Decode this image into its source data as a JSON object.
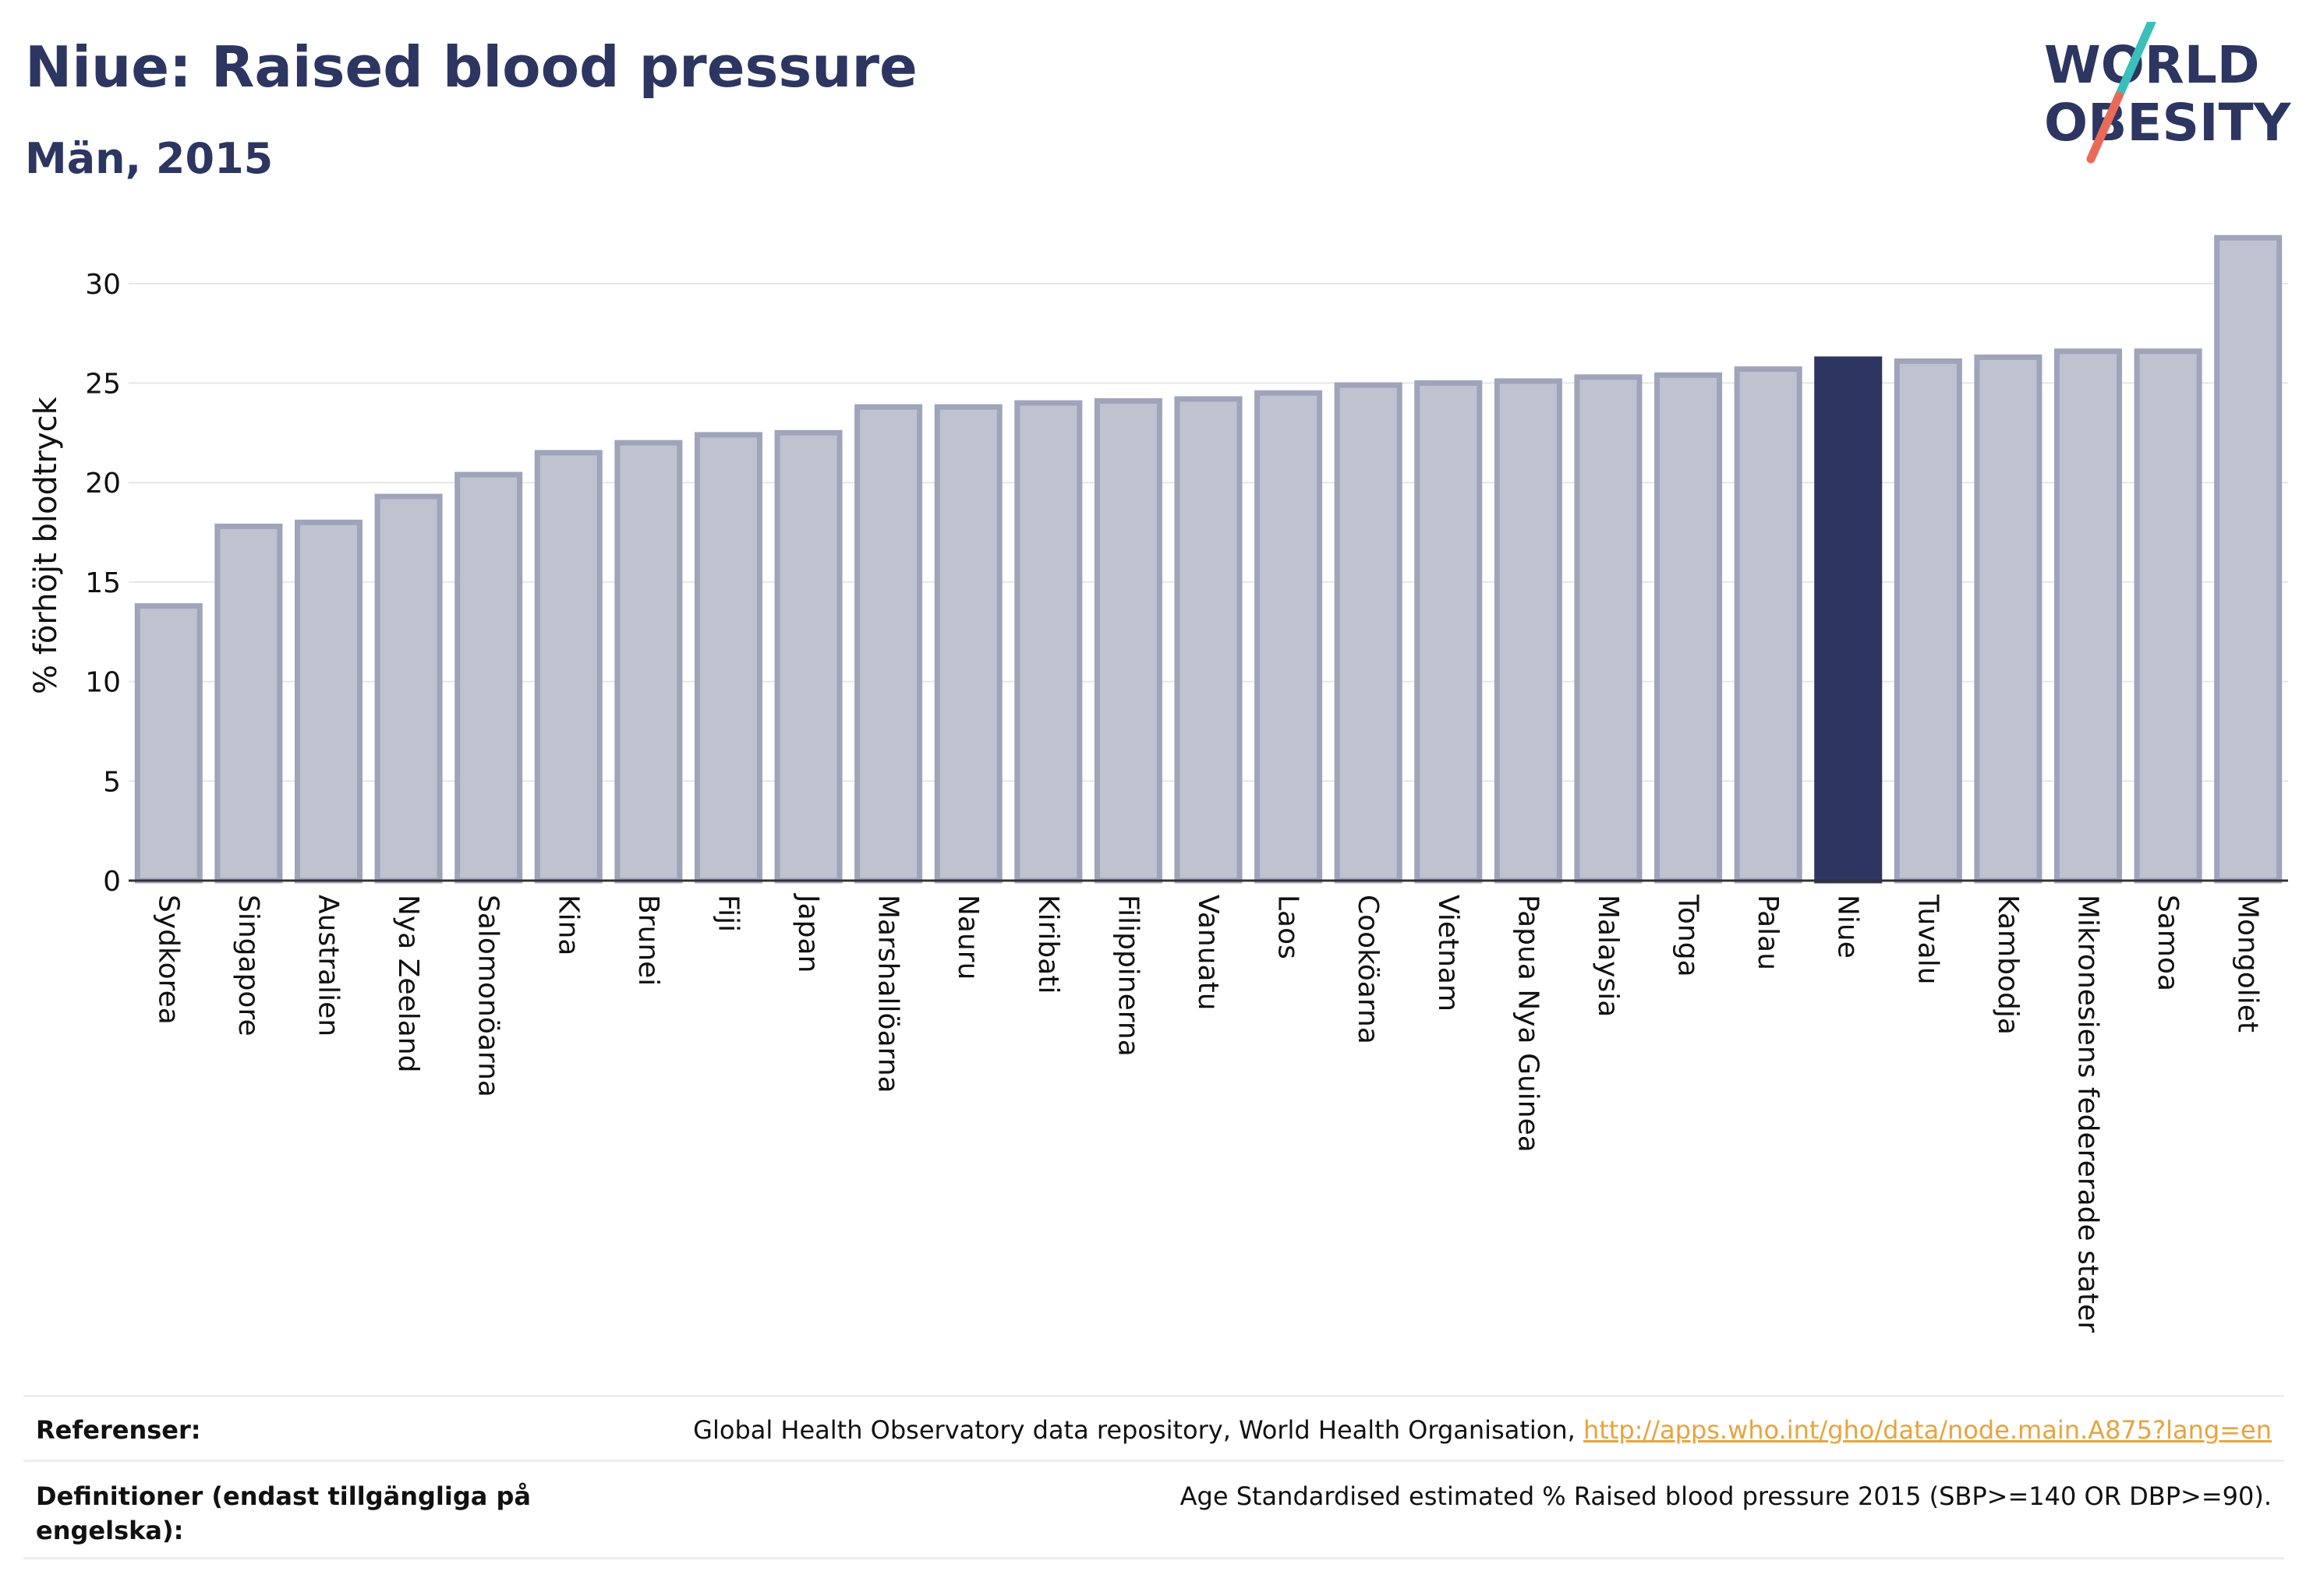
{
  "header": {
    "title": "Niue: Raised blood pressure",
    "subtitle": "Män, 2015"
  },
  "logo": {
    "line1": "WORLD",
    "line2": "OBESITY",
    "colors": {
      "text": "#2d3561",
      "slash_top": "#3bbfb9",
      "slash_bottom": "#ea6a5a"
    }
  },
  "chart_data": {
    "type": "bar",
    "title": "Niue: Raised blood pressure",
    "subtitle": "Män, 2015",
    "xlabel": "",
    "ylabel": "% förhöjt blodtryck",
    "ylim": [
      0,
      32.5
    ],
    "yticks": [
      0,
      5,
      10,
      15,
      20,
      25,
      30
    ],
    "grid": true,
    "highlight": "Niue",
    "colors": {
      "bar": "#bfc2cf",
      "bar_border": "#9fa4bb",
      "highlight": "#2d3561",
      "grid": "#e6e6e6",
      "axis": "#333333"
    },
    "categories": [
      "Sydkorea",
      "Singapore",
      "Australien",
      "Nya Zeeland",
      "Salomonöarna",
      "Kina",
      "Brunei",
      "Fiji",
      "Japan",
      "Marshallöarna",
      "Nauru",
      "Kiribati",
      "Filippinerna",
      "Vanuatu",
      "Laos",
      "Cooköarna",
      "Vietnam",
      "Papua Nya Guinea",
      "Malaysia",
      "Tonga",
      "Palau",
      "Niue",
      "Tuvalu",
      "Kambodja",
      "Mikronesiens federerade stater",
      "Samoa",
      "Mongoliet"
    ],
    "values": [
      13.8,
      17.8,
      18.0,
      19.3,
      20.4,
      21.5,
      22.0,
      22.4,
      22.5,
      23.8,
      23.8,
      24.0,
      24.1,
      24.2,
      24.5,
      24.9,
      25.0,
      25.1,
      25.3,
      25.4,
      25.7,
      26.2,
      26.1,
      26.3,
      26.6,
      26.6,
      32.3
    ]
  },
  "references": {
    "ref_label": "Referenser:",
    "ref_text": "Global Health Observatory data repository, World Health Organisation,",
    "ref_link": "http://apps.who.int/gho/data/node.main.A875?lang=en",
    "def_label": "Definitioner (endast tillgängliga på engelska):",
    "def_text": "Age Standardised estimated % Raised blood pressure 2015 (SBP>=140 OR DBP>=90)."
  }
}
